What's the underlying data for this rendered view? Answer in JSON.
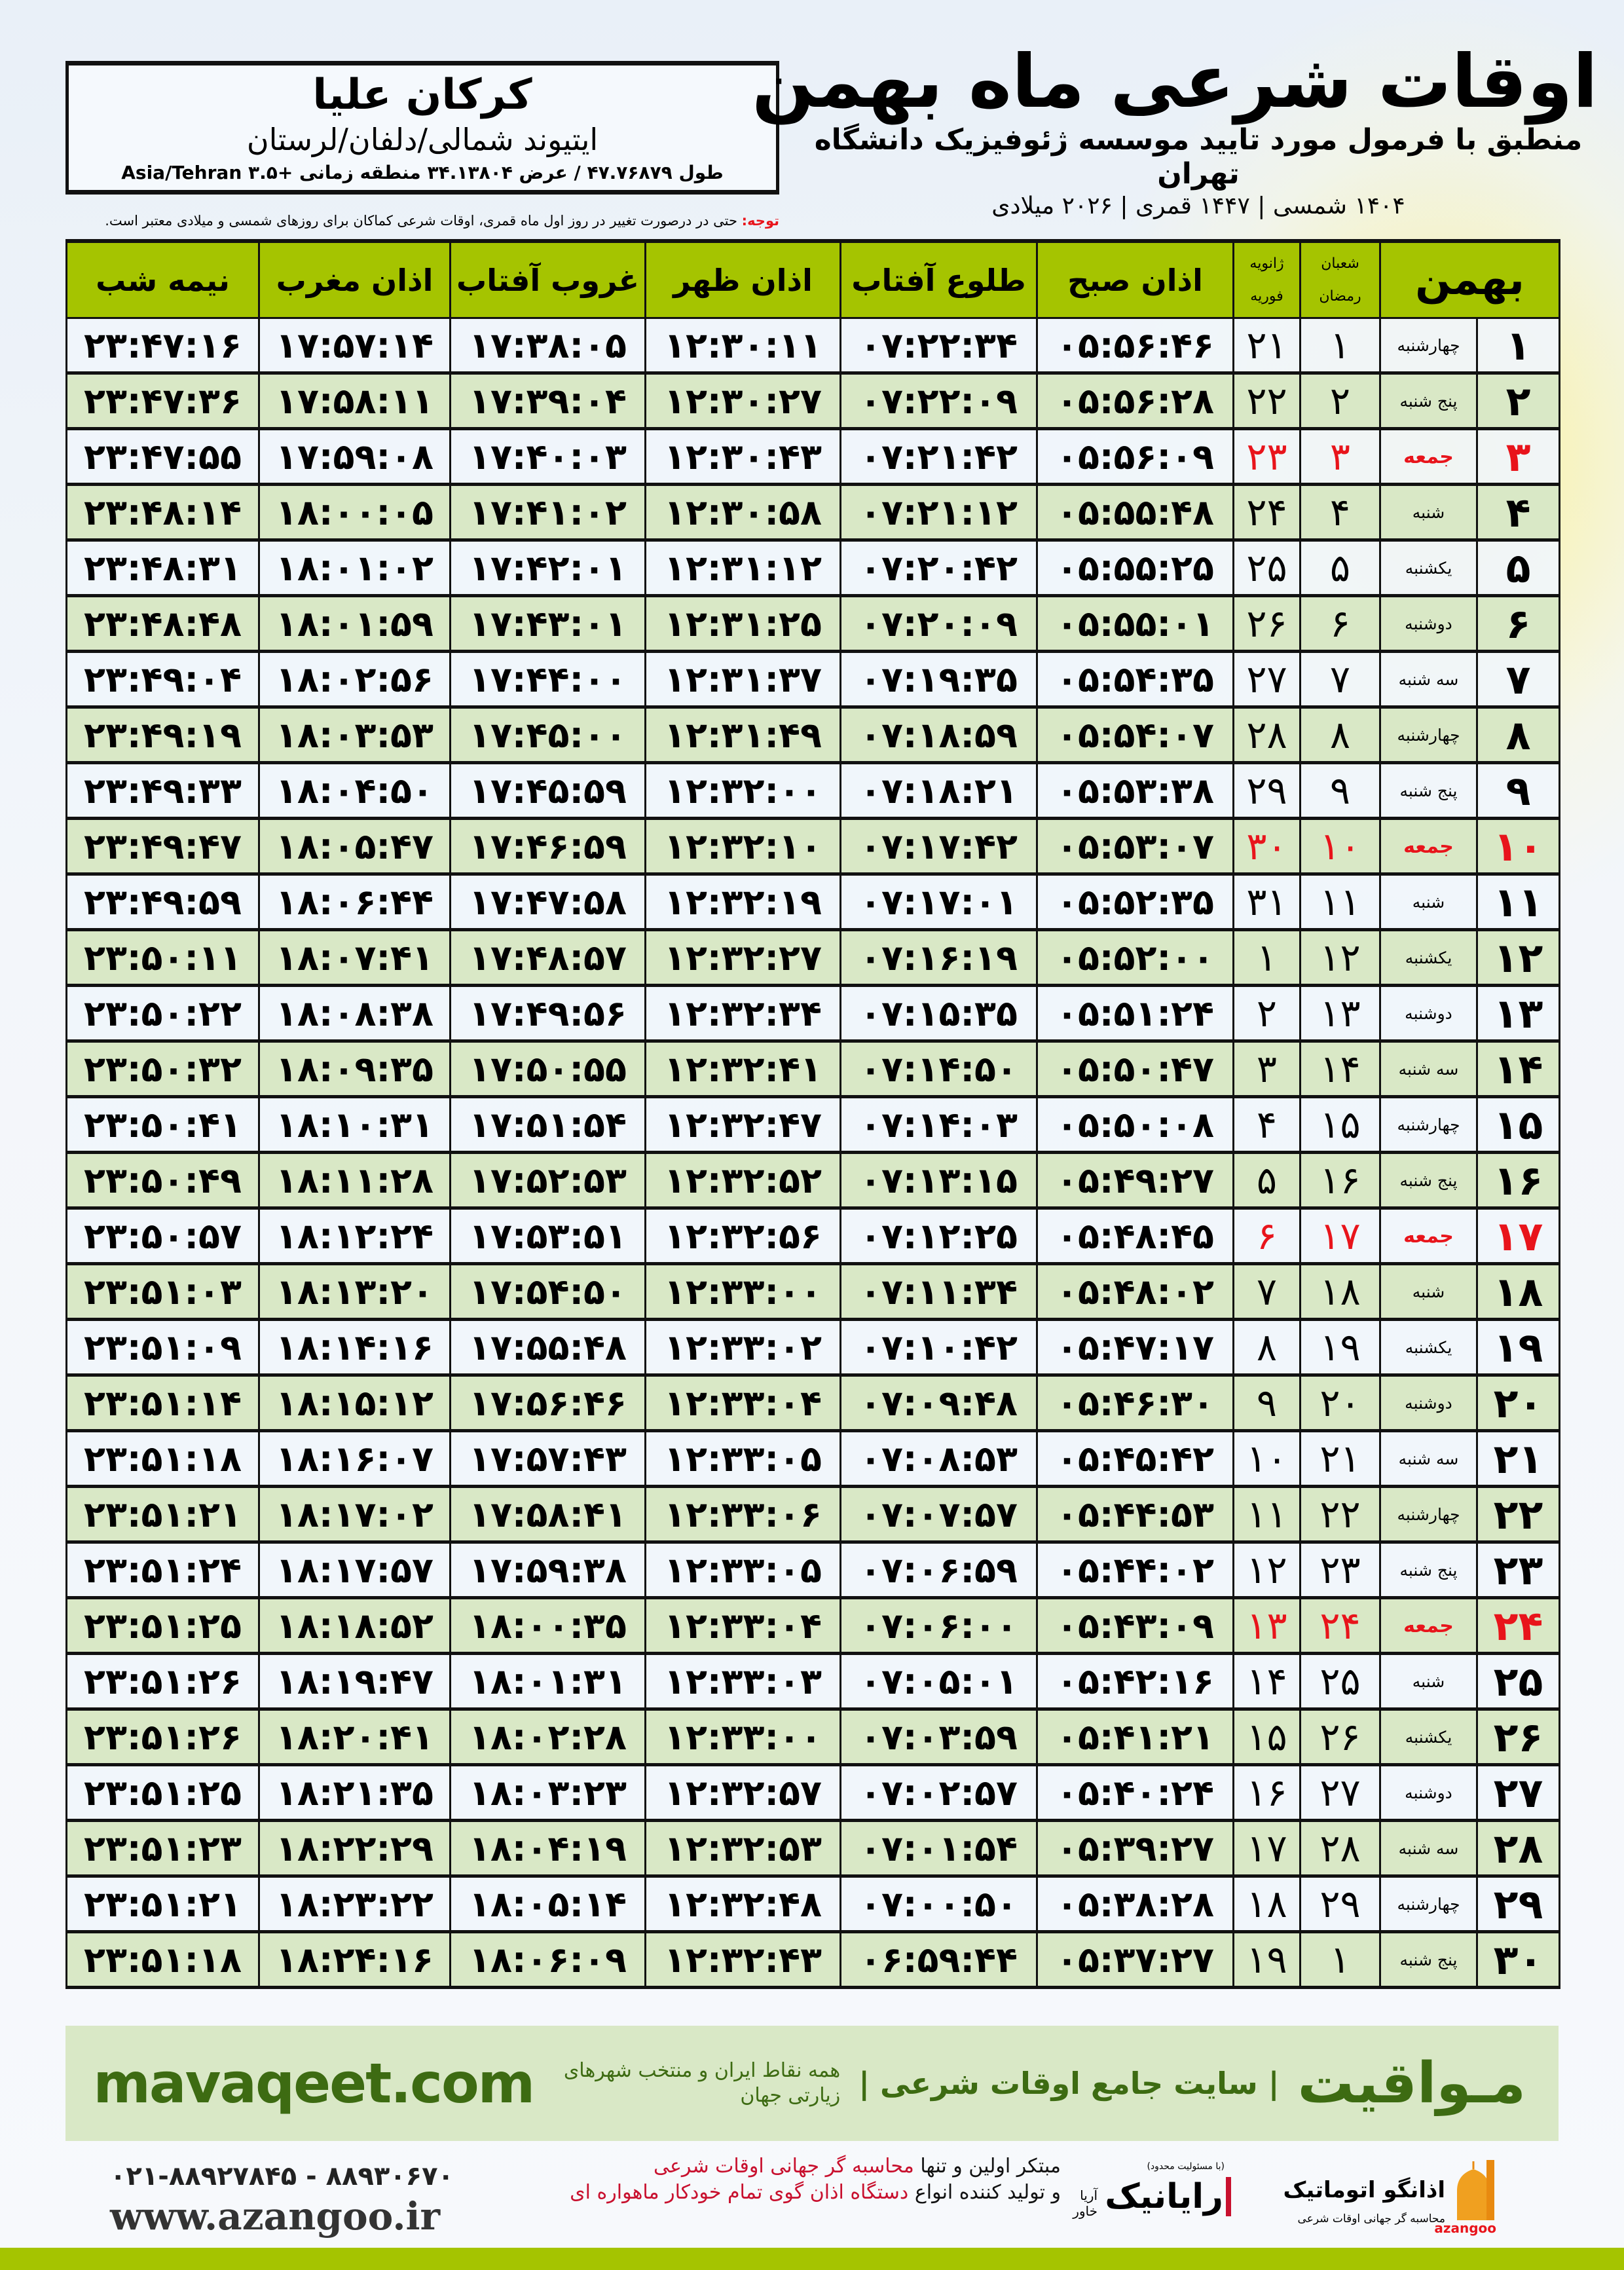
{
  "header": {
    "title": "اوقات شرعی ماه بهمن",
    "subtitle": "منطبق با فرمول مورد تایید موسسه ژئوفیزیک دانشگاه تهران",
    "dates": "۱۴۰۴ شمسی | ۱۴۴۷ قمری | ۲۰۲۶ میلادی"
  },
  "location": {
    "name": "کرکان علیا",
    "region": "ایتیوند شمالی/دلفان/لرستان",
    "coords": "طول ۴۷.۷۶۸۷۹ / عرض ۳۴.۱۳۸۰۴ منطقه زمانی +۳.۵ Asia/Tehran"
  },
  "note": {
    "label": "توجه:",
    "text": " حتی در درصورت تغییر در روز اول ماه قمری، اوقات شرعی کماکان برای روزهای شمسی و میلادی معتبر است."
  },
  "table": {
    "headers": {
      "month": "بهمن",
      "hijri_top": "شعبان",
      "hijri_bottom": "رمضان",
      "greg_top": "ژانویه",
      "greg_bottom": "فوریه",
      "fajr": "اذان صبح",
      "sunrise": "طلوع آفتاب",
      "dhuhr": "اذان ظهر",
      "sunset": "غروب آفتاب",
      "maghrib": "اذان مغرب",
      "midnight": "نیمه شب"
    },
    "holiday_color": "#e8141b",
    "columns": [
      "day",
      "weekday",
      "hijri",
      "greg",
      "fajr",
      "sunrise",
      "dhuhr",
      "sunset",
      "maghrib",
      "midnight"
    ],
    "rows": [
      {
        "holiday": false,
        "cells": [
          "۱",
          "چهارشنبه",
          "۱",
          "۲۱",
          "۰۵:۵۶:۴۶",
          "۰۷:۲۲:۳۴",
          "۱۲:۳۰:۱۱",
          "۱۷:۳۸:۰۵",
          "۱۷:۵۷:۱۴",
          "۲۳:۴۷:۱۶"
        ]
      },
      {
        "holiday": false,
        "cells": [
          "۲",
          "پنج شنبه",
          "۲",
          "۲۲",
          "۰۵:۵۶:۲۸",
          "۰۷:۲۲:۰۹",
          "۱۲:۳۰:۲۷",
          "۱۷:۳۹:۰۴",
          "۱۷:۵۸:۱۱",
          "۲۳:۴۷:۳۶"
        ]
      },
      {
        "holiday": true,
        "cells": [
          "۳",
          "جمعه",
          "۳",
          "۲۳",
          "۰۵:۵۶:۰۹",
          "۰۷:۲۱:۴۲",
          "۱۲:۳۰:۴۳",
          "۱۷:۴۰:۰۳",
          "۱۷:۵۹:۰۸",
          "۲۳:۴۷:۵۵"
        ]
      },
      {
        "holiday": false,
        "cells": [
          "۴",
          "شنبه",
          "۴",
          "۲۴",
          "۰۵:۵۵:۴۸",
          "۰۷:۲۱:۱۲",
          "۱۲:۳۰:۵۸",
          "۱۷:۴۱:۰۲",
          "۱۸:۰۰:۰۵",
          "۲۳:۴۸:۱۴"
        ]
      },
      {
        "holiday": false,
        "cells": [
          "۵",
          "یکشنبه",
          "۵",
          "۲۵",
          "۰۵:۵۵:۲۵",
          "۰۷:۲۰:۴۲",
          "۱۲:۳۱:۱۲",
          "۱۷:۴۲:۰۱",
          "۱۸:۰۱:۰۲",
          "۲۳:۴۸:۳۱"
        ]
      },
      {
        "holiday": false,
        "cells": [
          "۶",
          "دوشنبه",
          "۶",
          "۲۶",
          "۰۵:۵۵:۰۱",
          "۰۷:۲۰:۰۹",
          "۱۲:۳۱:۲۵",
          "۱۷:۴۳:۰۱",
          "۱۸:۰۱:۵۹",
          "۲۳:۴۸:۴۸"
        ]
      },
      {
        "holiday": false,
        "cells": [
          "۷",
          "سه شنبه",
          "۷",
          "۲۷",
          "۰۵:۵۴:۳۵",
          "۰۷:۱۹:۳۵",
          "۱۲:۳۱:۳۷",
          "۱۷:۴۴:۰۰",
          "۱۸:۰۲:۵۶",
          "۲۳:۴۹:۰۴"
        ]
      },
      {
        "holiday": false,
        "cells": [
          "۸",
          "چهارشنبه",
          "۸",
          "۲۸",
          "۰۵:۵۴:۰۷",
          "۰۷:۱۸:۵۹",
          "۱۲:۳۱:۴۹",
          "۱۷:۴۵:۰۰",
          "۱۸:۰۳:۵۳",
          "۲۳:۴۹:۱۹"
        ]
      },
      {
        "holiday": false,
        "cells": [
          "۹",
          "پنج شنبه",
          "۹",
          "۲۹",
          "۰۵:۵۳:۳۸",
          "۰۷:۱۸:۲۱",
          "۱۲:۳۲:۰۰",
          "۱۷:۴۵:۵۹",
          "۱۸:۰۴:۵۰",
          "۲۳:۴۹:۳۳"
        ]
      },
      {
        "holiday": true,
        "cells": [
          "۱۰",
          "جمعه",
          "۱۰",
          "۳۰",
          "۰۵:۵۳:۰۷",
          "۰۷:۱۷:۴۲",
          "۱۲:۳۲:۱۰",
          "۱۷:۴۶:۵۹",
          "۱۸:۰۵:۴۷",
          "۲۳:۴۹:۴۷"
        ]
      },
      {
        "holiday": false,
        "cells": [
          "۱۱",
          "شنبه",
          "۱۱",
          "۳۱",
          "۰۵:۵۲:۳۵",
          "۰۷:۱۷:۰۱",
          "۱۲:۳۲:۱۹",
          "۱۷:۴۷:۵۸",
          "۱۸:۰۶:۴۴",
          "۲۳:۴۹:۵۹"
        ]
      },
      {
        "holiday": false,
        "cells": [
          "۱۲",
          "یکشنبه",
          "۱۲",
          "۱",
          "۰۵:۵۲:۰۰",
          "۰۷:۱۶:۱۹",
          "۱۲:۳۲:۲۷",
          "۱۷:۴۸:۵۷",
          "۱۸:۰۷:۴۱",
          "۲۳:۵۰:۱۱"
        ]
      },
      {
        "holiday": false,
        "cells": [
          "۱۳",
          "دوشنبه",
          "۱۳",
          "۲",
          "۰۵:۵۱:۲۴",
          "۰۷:۱۵:۳۵",
          "۱۲:۳۲:۳۴",
          "۱۷:۴۹:۵۶",
          "۱۸:۰۸:۳۸",
          "۲۳:۵۰:۲۲"
        ]
      },
      {
        "holiday": false,
        "cells": [
          "۱۴",
          "سه شنبه",
          "۱۴",
          "۳",
          "۰۵:۵۰:۴۷",
          "۰۷:۱۴:۵۰",
          "۱۲:۳۲:۴۱",
          "۱۷:۵۰:۵۵",
          "۱۸:۰۹:۳۵",
          "۲۳:۵۰:۳۲"
        ]
      },
      {
        "holiday": false,
        "cells": [
          "۱۵",
          "چهارشنبه",
          "۱۵",
          "۴",
          "۰۵:۵۰:۰۸",
          "۰۷:۱۴:۰۳",
          "۱۲:۳۲:۴۷",
          "۱۷:۵۱:۵۴",
          "۱۸:۱۰:۳۱",
          "۲۳:۵۰:۴۱"
        ]
      },
      {
        "holiday": false,
        "cells": [
          "۱۶",
          "پنج شنبه",
          "۱۶",
          "۵",
          "۰۵:۴۹:۲۷",
          "۰۷:۱۳:۱۵",
          "۱۲:۳۲:۵۲",
          "۱۷:۵۲:۵۳",
          "۱۸:۱۱:۲۸",
          "۲۳:۵۰:۴۹"
        ]
      },
      {
        "holiday": true,
        "cells": [
          "۱۷",
          "جمعه",
          "۱۷",
          "۶",
          "۰۵:۴۸:۴۵",
          "۰۷:۱۲:۲۵",
          "۱۲:۳۲:۵۶",
          "۱۷:۵۳:۵۱",
          "۱۸:۱۲:۲۴",
          "۲۳:۵۰:۵۷"
        ]
      },
      {
        "holiday": false,
        "cells": [
          "۱۸",
          "شنبه",
          "۱۸",
          "۷",
          "۰۵:۴۸:۰۲",
          "۰۷:۱۱:۳۴",
          "۱۲:۳۳:۰۰",
          "۱۷:۵۴:۵۰",
          "۱۸:۱۳:۲۰",
          "۲۳:۵۱:۰۳"
        ]
      },
      {
        "holiday": false,
        "cells": [
          "۱۹",
          "یکشنبه",
          "۱۹",
          "۸",
          "۰۵:۴۷:۱۷",
          "۰۷:۱۰:۴۲",
          "۱۲:۳۳:۰۲",
          "۱۷:۵۵:۴۸",
          "۱۸:۱۴:۱۶",
          "۲۳:۵۱:۰۹"
        ]
      },
      {
        "holiday": false,
        "cells": [
          "۲۰",
          "دوشنبه",
          "۲۰",
          "۹",
          "۰۵:۴۶:۳۰",
          "۰۷:۰۹:۴۸",
          "۱۲:۳۳:۰۴",
          "۱۷:۵۶:۴۶",
          "۱۸:۱۵:۱۲",
          "۲۳:۵۱:۱۴"
        ]
      },
      {
        "holiday": false,
        "cells": [
          "۲۱",
          "سه شنبه",
          "۲۱",
          "۱۰",
          "۰۵:۴۵:۴۲",
          "۰۷:۰۸:۵۳",
          "۱۲:۳۳:۰۵",
          "۱۷:۵۷:۴۳",
          "۱۸:۱۶:۰۷",
          "۲۳:۵۱:۱۸"
        ]
      },
      {
        "holiday": false,
        "cells": [
          "۲۲",
          "چهارشنبه",
          "۲۲",
          "۱۱",
          "۰۵:۴۴:۵۳",
          "۰۷:۰۷:۵۷",
          "۱۲:۳۳:۰۶",
          "۱۷:۵۸:۴۱",
          "۱۸:۱۷:۰۲",
          "۲۳:۵۱:۲۱"
        ]
      },
      {
        "holiday": false,
        "cells": [
          "۲۳",
          "پنج شنبه",
          "۲۳",
          "۱۲",
          "۰۵:۴۴:۰۲",
          "۰۷:۰۶:۵۹",
          "۱۲:۳۳:۰۵",
          "۱۷:۵۹:۳۸",
          "۱۸:۱۷:۵۷",
          "۲۳:۵۱:۲۴"
        ]
      },
      {
        "holiday": true,
        "cells": [
          "۲۴",
          "جمعه",
          "۲۴",
          "۱۳",
          "۰۵:۴۳:۰۹",
          "۰۷:۰۶:۰۰",
          "۱۲:۳۳:۰۴",
          "۱۸:۰۰:۳۵",
          "۱۸:۱۸:۵۲",
          "۲۳:۵۱:۲۵"
        ]
      },
      {
        "holiday": false,
        "cells": [
          "۲۵",
          "شنبه",
          "۲۵",
          "۱۴",
          "۰۵:۴۲:۱۶",
          "۰۷:۰۵:۰۱",
          "۱۲:۳۳:۰۳",
          "۱۸:۰۱:۳۱",
          "۱۸:۱۹:۴۷",
          "۲۳:۵۱:۲۶"
        ]
      },
      {
        "holiday": false,
        "cells": [
          "۲۶",
          "یکشنبه",
          "۲۶",
          "۱۵",
          "۰۵:۴۱:۲۱",
          "۰۷:۰۳:۵۹",
          "۱۲:۳۳:۰۰",
          "۱۸:۰۲:۲۸",
          "۱۸:۲۰:۴۱",
          "۲۳:۵۱:۲۶"
        ]
      },
      {
        "holiday": false,
        "cells": [
          "۲۷",
          "دوشنبه",
          "۲۷",
          "۱۶",
          "۰۵:۴۰:۲۴",
          "۰۷:۰۲:۵۷",
          "۱۲:۳۲:۵۷",
          "۱۸:۰۳:۲۳",
          "۱۸:۲۱:۳۵",
          "۲۳:۵۱:۲۵"
        ]
      },
      {
        "holiday": false,
        "cells": [
          "۲۸",
          "سه شنبه",
          "۲۸",
          "۱۷",
          "۰۵:۳۹:۲۷",
          "۰۷:۰۱:۵۴",
          "۱۲:۳۲:۵۳",
          "۱۸:۰۴:۱۹",
          "۱۸:۲۲:۲۹",
          "۲۳:۵۱:۲۳"
        ]
      },
      {
        "holiday": false,
        "cells": [
          "۲۹",
          "چهارشنبه",
          "۲۹",
          "۱۸",
          "۰۵:۳۸:۲۸",
          "۰۷:۰۰:۵۰",
          "۱۲:۳۲:۴۸",
          "۱۸:۰۵:۱۴",
          "۱۸:۲۳:۲۲",
          "۲۳:۵۱:۲۱"
        ]
      },
      {
        "holiday": false,
        "cells": [
          "۳۰",
          "پنج شنبه",
          "۱",
          "۱۹",
          "۰۵:۳۷:۲۷",
          "۰۶:۵۹:۴۴",
          "۱۲:۳۲:۴۳",
          "۱۸:۰۶:۰۹",
          "۱۸:۲۴:۱۶",
          "۲۳:۵۱:۱۸"
        ]
      }
    ]
  },
  "banner": {
    "brand": "مـواقیت",
    "tagline": "| سایت جامع اوقات شرعی |",
    "sub": "همه نقاط ایران و منتخب شهرهای زیارتی جهان",
    "url": "mavaqeet.com",
    "color": "#3d6b12"
  },
  "footer": {
    "phone": "۰۲۱-۸۸۹۲۷۸۴۵ - ۸۸۹۳۰۶۷۰",
    "website": "www.azangoo.ir",
    "promo_line1_a": "مبتکر اولین و تنها ",
    "promo_line1_b": "محاسبه گر جهانی اوقات شرعی",
    "promo_line2_a": "و تولید کننده انواع ",
    "promo_line2_b": "دستگاه اذان گوی تمام خودکار ماهواره ای",
    "rayanik_name": "رایانیک",
    "rayanik_sub": "آریا خاور",
    "rayanik_note": "(با مسئولیت محدود)",
    "azangoo_name": "اذانگو اتوماتیک",
    "azangoo_sub": "محاسبه گر جهانی اوقات شرعی",
    "azangoo_latin": "azangoo"
  }
}
